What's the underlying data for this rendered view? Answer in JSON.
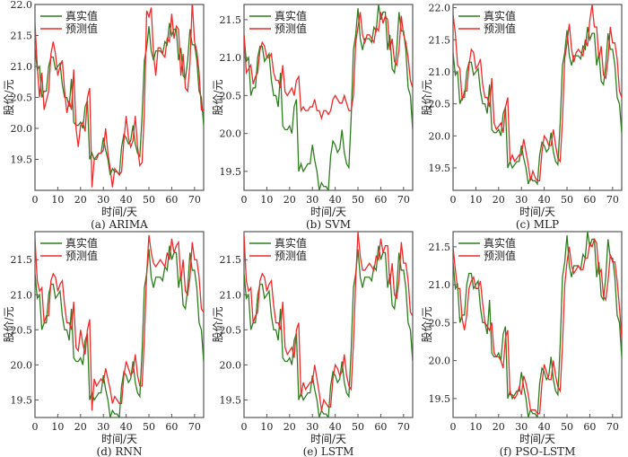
{
  "chart_data": {
    "type": "line",
    "x": [
      0,
      1,
      2,
      3,
      4,
      5,
      6,
      7,
      8,
      9,
      10,
      11,
      12,
      13,
      14,
      15,
      16,
      17,
      18,
      19,
      20,
      21,
      22,
      23,
      24,
      25,
      26,
      27,
      28,
      29,
      30,
      31,
      32,
      33,
      34,
      35,
      36,
      37,
      38,
      39,
      40,
      41,
      42,
      43,
      44,
      45,
      46,
      47,
      48,
      49,
      50,
      51,
      52,
      53,
      54,
      55,
      56,
      57,
      58,
      59,
      60,
      61,
      62,
      63,
      64,
      65,
      66,
      67,
      68,
      69,
      70,
      71,
      72,
      73,
      74
    ],
    "xlabel": "时间/天",
    "ylabel": "股价/元",
    "xlim": [
      0,
      74
    ],
    "xticks": [
      0,
      10,
      20,
      30,
      40,
      50,
      60,
      70
    ],
    "legend": [
      "真实值",
      "预测值"
    ],
    "legend_position": "top-left",
    "colors": {
      "true": "#2e7d1f",
      "pred": "#ee2a2a"
    },
    "true_values": [
      21.3,
      20.95,
      21.0,
      20.5,
      20.6,
      20.6,
      21.0,
      21.15,
      21.15,
      20.95,
      21.0,
      21.05,
      20.7,
      20.5,
      20.5,
      20.35,
      20.8,
      20.1,
      20.05,
      20.05,
      20.1,
      20.0,
      20.35,
      20.45,
      19.5,
      19.6,
      19.5,
      19.55,
      19.6,
      19.6,
      19.85,
      19.65,
      19.5,
      19.25,
      19.35,
      19.3,
      19.3,
      19.25,
      19.7,
      19.9,
      19.85,
      19.75,
      19.8,
      20.05,
      19.75,
      19.6,
      19.55,
      20.2,
      21.1,
      21.3,
      21.65,
      21.25,
      21.1,
      21.25,
      21.25,
      21.25,
      21.2,
      21.4,
      21.35,
      21.7,
      21.5,
      21.6,
      21.6,
      21.1,
      21.3,
      20.85,
      20.8,
      21.1,
      21.6,
      21.35,
      21.35,
      21.1,
      20.6,
      20.5,
      20.05
    ],
    "panels": [
      {
        "caption": "(a) ARIMA",
        "ylim": [
          19.0,
          22.0
        ],
        "yticks": [
          "19.5",
          "20.0",
          "20.5",
          "21.0",
          "21.5",
          "22.0"
        ],
        "pred": [
          21.7,
          21.0,
          20.5,
          20.9,
          20.3,
          20.45,
          20.6,
          21.2,
          21.4,
          21.2,
          20.85,
          21.0,
          21.1,
          20.6,
          20.25,
          20.45,
          20.3,
          20.95,
          20.0,
          19.7,
          20.05,
          20.1,
          19.95,
          20.5,
          20.65,
          19.05,
          19.5,
          19.5,
          19.6,
          19.6,
          19.65,
          20.0,
          19.6,
          19.35,
          19.05,
          19.35,
          19.3,
          19.25,
          19.3,
          19.8,
          20.2,
          19.85,
          19.7,
          19.8,
          20.2,
          19.7,
          19.4,
          19.45,
          20.3,
          21.9,
          21.8,
          21.95,
          21.2,
          20.85,
          21.3,
          21.3,
          21.2,
          21.15,
          21.45,
          21.4,
          21.85,
          21.45,
          21.65,
          21.6,
          20.85,
          21.2,
          20.65,
          20.6,
          21.05,
          22.05,
          21.4,
          21.25,
          20.9,
          20.3,
          20.3
        ]
      },
      {
        "caption": "(b) SVM",
        "ylim": [
          19.25,
          21.7
        ],
        "yticks": [
          "19.5",
          "20.0",
          "20.5",
          "21.0",
          "21.5"
        ],
        "pred": [
          21.3,
          20.8,
          20.85,
          20.9,
          20.65,
          20.75,
          20.8,
          21.1,
          21.2,
          21.15,
          21.0,
          21.0,
          21.05,
          20.8,
          20.7,
          20.7,
          20.6,
          20.9,
          20.55,
          20.5,
          20.55,
          20.6,
          20.5,
          20.7,
          20.75,
          20.3,
          20.35,
          20.3,
          20.3,
          20.35,
          20.35,
          20.45,
          20.3,
          20.3,
          20.2,
          20.3,
          20.3,
          20.25,
          20.3,
          20.45,
          20.5,
          20.45,
          20.4,
          20.4,
          20.5,
          20.4,
          20.3,
          20.3,
          20.5,
          21.2,
          21.4,
          21.6,
          21.3,
          21.2,
          21.3,
          21.3,
          21.25,
          21.2,
          21.4,
          21.35,
          21.6,
          21.45,
          21.55,
          21.5,
          21.1,
          21.25,
          20.95,
          20.9,
          21.1,
          21.55,
          21.3,
          21.2,
          21.0,
          20.7,
          20.6
        ]
      },
      {
        "caption": "(c) MLP",
        "ylim": [
          19.15,
          22.05
        ],
        "yticks": [
          "19.5",
          "20.0",
          "20.5",
          "21.0",
          "21.5",
          "22.0"
        ],
        "pred": [
          21.9,
          21.6,
          21.1,
          21.05,
          20.55,
          20.7,
          20.7,
          21.1,
          21.35,
          21.3,
          21.05,
          21.1,
          21.2,
          20.8,
          20.6,
          20.6,
          20.45,
          20.9,
          20.2,
          20.1,
          20.15,
          20.2,
          20.05,
          20.45,
          20.6,
          19.6,
          19.7,
          19.6,
          19.65,
          19.7,
          19.7,
          19.95,
          19.75,
          19.55,
          19.3,
          19.45,
          19.35,
          19.3,
          19.3,
          19.75,
          20.0,
          19.95,
          19.85,
          19.85,
          20.1,
          19.85,
          19.65,
          19.6,
          20.25,
          21.2,
          21.45,
          21.75,
          21.35,
          21.15,
          21.3,
          21.35,
          21.3,
          21.25,
          21.5,
          21.4,
          21.8,
          22.05,
          21.7,
          21.7,
          21.2,
          21.4,
          20.95,
          20.9,
          21.2,
          21.7,
          21.45,
          21.45,
          21.2,
          20.7,
          20.6
        ]
      },
      {
        "caption": "(d) RNN",
        "ylim": [
          19.25,
          21.9
        ],
        "yticks": [
          "19.5",
          "20.0",
          "20.5",
          "21.0",
          "21.5"
        ],
        "pred": [
          21.8,
          21.2,
          21.05,
          21.1,
          20.6,
          20.7,
          20.7,
          21.2,
          21.3,
          21.25,
          21.05,
          21.15,
          21.2,
          20.85,
          20.6,
          20.6,
          20.5,
          20.9,
          20.25,
          20.2,
          20.5,
          20.3,
          20.15,
          20.5,
          20.65,
          19.35,
          19.8,
          19.7,
          19.75,
          19.8,
          19.75,
          19.95,
          19.8,
          19.65,
          19.45,
          19.55,
          19.5,
          19.45,
          19.45,
          19.85,
          20.05,
          19.95,
          19.85,
          19.9,
          20.15,
          19.85,
          19.7,
          19.7,
          20.4,
          21.3,
          21.85,
          21.6,
          21.45,
          21.4,
          21.45,
          21.5,
          21.45,
          21.4,
          21.6,
          21.5,
          21.8,
          21.6,
          21.7,
          21.75,
          21.2,
          21.5,
          21.05,
          21.0,
          21.25,
          21.75,
          21.5,
          21.5,
          21.25,
          20.8,
          20.75
        ]
      },
      {
        "caption": "(e) LSTM",
        "ylim": [
          19.25,
          21.9
        ],
        "yticks": [
          "19.5",
          "20.0",
          "20.5",
          "21.0",
          "21.5"
        ],
        "pred": [
          21.85,
          21.2,
          21.05,
          21.1,
          20.6,
          20.7,
          20.75,
          21.2,
          21.3,
          21.25,
          21.05,
          21.15,
          21.2,
          20.85,
          20.6,
          20.6,
          20.5,
          20.9,
          20.25,
          20.15,
          20.2,
          20.25,
          20.1,
          20.5,
          20.6,
          19.55,
          19.75,
          19.65,
          19.7,
          19.75,
          19.75,
          20.0,
          19.8,
          19.6,
          19.35,
          19.5,
          19.45,
          19.4,
          19.4,
          19.8,
          20.0,
          19.95,
          19.85,
          19.9,
          20.15,
          19.85,
          19.7,
          19.65,
          20.3,
          21.2,
          21.9,
          21.55,
          21.35,
          21.35,
          21.4,
          21.45,
          21.4,
          21.35,
          21.55,
          21.5,
          21.8,
          21.6,
          21.7,
          21.7,
          21.15,
          21.45,
          21.0,
          20.95,
          21.2,
          21.75,
          21.45,
          21.45,
          21.2,
          20.75,
          20.7
        ]
      },
      {
        "caption": "(f) PSO-LSTM",
        "ylim": [
          19.25,
          21.7
        ],
        "yticks": [
          "19.5",
          "20.0",
          "20.5",
          "21.0",
          "21.5"
        ],
        "pred": [
          21.5,
          21.2,
          20.95,
          20.95,
          20.55,
          20.4,
          20.6,
          20.95,
          21.05,
          21.1,
          20.95,
          20.95,
          21.05,
          20.75,
          20.5,
          20.45,
          20.4,
          20.5,
          20.1,
          20.05,
          20.05,
          20.0,
          19.9,
          20.3,
          20.4,
          19.55,
          19.55,
          19.5,
          19.55,
          19.65,
          19.55,
          19.8,
          19.7,
          19.55,
          19.35,
          19.35,
          19.35,
          19.3,
          19.3,
          19.7,
          19.95,
          19.85,
          19.75,
          19.75,
          20.0,
          19.8,
          19.65,
          19.6,
          20.2,
          21.0,
          21.3,
          21.5,
          21.25,
          21.15,
          21.2,
          21.25,
          21.2,
          21.2,
          21.35,
          21.35,
          21.55,
          21.5,
          21.6,
          21.55,
          21.15,
          21.2,
          20.85,
          20.8,
          21.05,
          21.4,
          21.3,
          21.3,
          21.05,
          20.7,
          20.3
        ]
      }
    ]
  }
}
